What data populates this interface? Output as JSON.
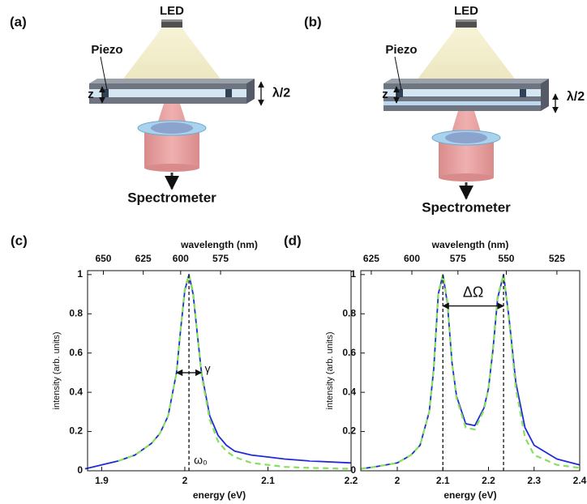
{
  "diagrams": [
    {
      "label": "(a)",
      "led": "LED",
      "piezo": "Piezo",
      "z": "z",
      "gap": "λ/2",
      "detector": "Spectrometer"
    },
    {
      "label": "(b)",
      "led": "LED",
      "piezo": "Piezo",
      "z": "z",
      "gap": "λ/2",
      "detector": "Spectrometer"
    }
  ],
  "chart_data": [
    {
      "type": "line",
      "label": "(c)",
      "x_label": "energy (eV)",
      "y_label": "intensity (arb. units)",
      "x2_label": "wavelength (nm)",
      "xlim": [
        1.883,
        2.2
      ],
      "xticks": [
        1.9,
        2,
        2.1,
        2.2
      ],
      "x2ticks": [
        {
          "value": 1.902,
          "label": "650"
        },
        {
          "value": 1.95,
          "label": "625"
        },
        {
          "value": 1.995,
          "label": "600"
        },
        {
          "value": 2.043,
          "label": "575"
        }
      ],
      "ylim": [
        0,
        1.02
      ],
      "yticks": [
        0,
        0.2,
        0.4,
        0.6,
        0.8,
        1
      ],
      "x": [
        1.88,
        1.9,
        1.92,
        1.94,
        1.95,
        1.96,
        1.97,
        1.98,
        1.99,
        1.995,
        2.0,
        2.005,
        2.01,
        2.015,
        2.02,
        2.03,
        2.04,
        2.05,
        2.06,
        2.08,
        2.1,
        2.12,
        2.15,
        2.2
      ],
      "series": [
        {
          "color": "#1f2bd6",
          "dashed": false,
          "values": [
            0.01,
            0.03,
            0.05,
            0.08,
            0.11,
            0.14,
            0.19,
            0.28,
            0.5,
            0.72,
            0.92,
            1.0,
            0.9,
            0.7,
            0.5,
            0.28,
            0.18,
            0.13,
            0.1,
            0.08,
            0.07,
            0.06,
            0.05,
            0.04
          ]
        },
        {
          "color": "#86e05c",
          "dashed": true,
          "values": [
            null,
            null,
            0.05,
            0.08,
            0.11,
            0.14,
            0.19,
            0.28,
            0.5,
            0.72,
            0.93,
            1.0,
            0.91,
            0.7,
            0.49,
            0.26,
            0.15,
            0.1,
            0.07,
            0.04,
            0.03,
            0.02,
            0.015,
            0.01
          ]
        }
      ],
      "vlines": [
        {
          "x": 2.005,
          "label": "ω₀"
        }
      ],
      "arrows": [
        {
          "x": [
            1.99,
            2.02
          ],
          "y": 0.5,
          "label": "γ"
        }
      ]
    },
    {
      "type": "line",
      "label": "(d)",
      "x_label": "energy (eV)",
      "y_label": "intensity (arb. units)",
      "x2_label": "wavelength (nm)",
      "xlim": [
        1.92,
        2.4
      ],
      "xticks": [
        2,
        2.1,
        2.2,
        2.3,
        2.4
      ],
      "x2ticks": [
        {
          "value": 1.943,
          "label": "625"
        },
        {
          "value": 2.032,
          "label": "600"
        },
        {
          "value": 2.133,
          "label": "575"
        },
        {
          "value": 2.239,
          "label": "550"
        },
        {
          "value": 2.35,
          "label": "525"
        }
      ],
      "ylim": [
        0,
        1.02
      ],
      "yticks": [
        0,
        0.2,
        0.4,
        0.6,
        0.8,
        1
      ],
      "x": [
        1.92,
        1.95,
        2.0,
        2.03,
        2.05,
        2.07,
        2.08,
        2.09,
        2.1,
        2.11,
        2.12,
        2.13,
        2.15,
        2.17,
        2.19,
        2.2,
        2.21,
        2.22,
        2.233,
        2.245,
        2.26,
        2.28,
        2.3,
        2.35,
        2.4
      ],
      "series": [
        {
          "color": "#1f2bd6",
          "dashed": false,
          "values": [
            0.01,
            0.02,
            0.04,
            0.08,
            0.13,
            0.3,
            0.52,
            0.9,
            1.0,
            0.85,
            0.55,
            0.38,
            0.24,
            0.23,
            0.32,
            0.42,
            0.62,
            0.88,
            1.0,
            0.78,
            0.45,
            0.22,
            0.13,
            0.06,
            0.03
          ]
        },
        {
          "color": "#86e05c",
          "dashed": true,
          "values": [
            0.01,
            0.02,
            0.04,
            0.08,
            0.13,
            0.3,
            0.53,
            0.91,
            1.0,
            0.86,
            0.55,
            0.37,
            0.22,
            0.21,
            0.31,
            0.42,
            0.63,
            0.89,
            1.0,
            0.77,
            0.42,
            0.17,
            0.08,
            0.03,
            0.015
          ]
        }
      ],
      "vlines": [
        {
          "x": 2.1
        },
        {
          "x": 2.233
        }
      ],
      "arrows": [
        {
          "x": [
            2.1,
            2.233
          ],
          "y": 0.84,
          "label": "ΔΩ"
        }
      ]
    }
  ]
}
